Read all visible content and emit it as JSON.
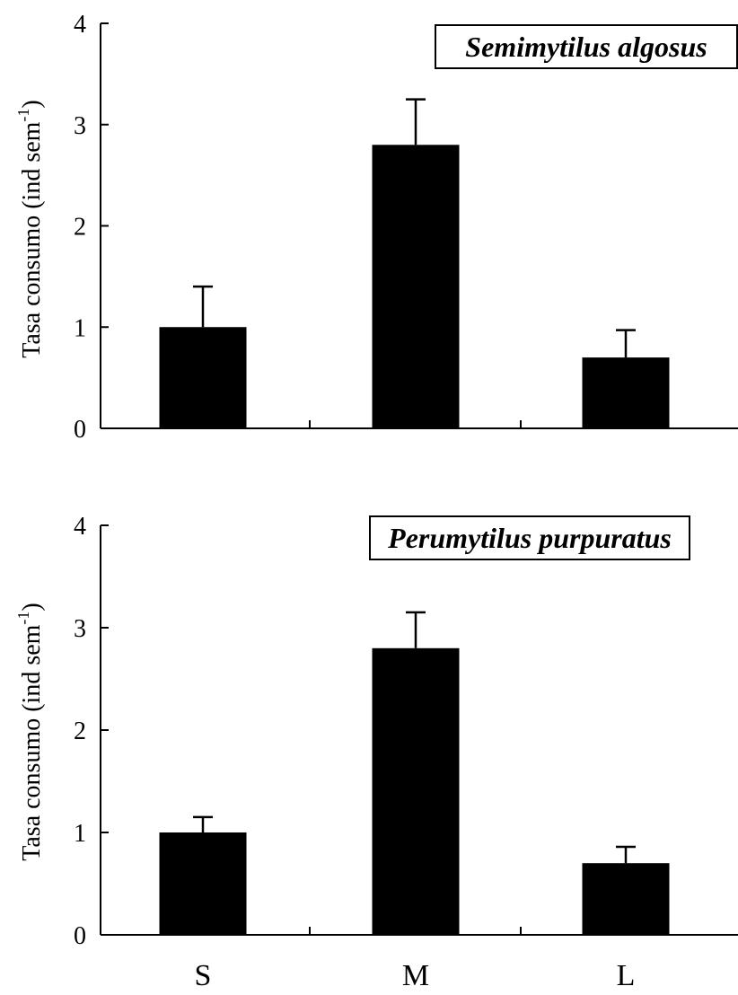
{
  "chart_data": [
    {
      "type": "bar",
      "categories": [
        "S",
        "M",
        "L"
      ],
      "series": [
        {
          "name": "Semimytilus algosus",
          "values": [
            1.0,
            2.8,
            0.7
          ],
          "errors": [
            0.4,
            0.45,
            0.27
          ]
        }
      ],
      "ylabel": "Tasa consumo (ind sem",
      "ylabel_sup": "-1",
      "ylabel_close": ")",
      "yticks": [
        "0",
        "1",
        "2",
        "3",
        "4"
      ],
      "ylim": [
        0,
        4
      ],
      "legend": "top-right",
      "grid": false,
      "colors": {
        "bar": "#000000",
        "axis": "#000000"
      }
    },
    {
      "type": "bar",
      "categories": [
        "S",
        "M",
        "L"
      ],
      "series": [
        {
          "name": "Perumytilus purpuratus",
          "values": [
            1.0,
            2.8,
            0.7
          ],
          "errors": [
            0.15,
            0.35,
            0.16
          ]
        }
      ],
      "ylabel": "Tasa consumo (ind sem",
      "ylabel_sup": "-1",
      "ylabel_close": ")",
      "yticks": [
        "0",
        "1",
        "2",
        "3",
        "4"
      ],
      "ylim": [
        0,
        4
      ],
      "legend": "top-right",
      "grid": false,
      "colors": {
        "bar": "#000000",
        "axis": "#000000"
      }
    }
  ]
}
